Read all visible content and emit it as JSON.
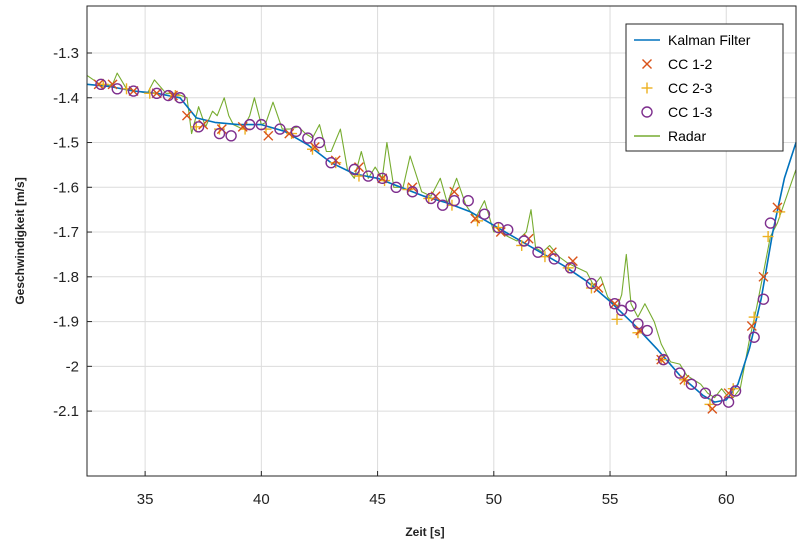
{
  "chart_data": {
    "type": "line",
    "title": "",
    "xlabel": "Zeit [s]",
    "ylabel": "Geschwindigkeit [m/s]",
    "xlim": [
      32.5,
      63
    ],
    "ylim": [
      -2.245,
      -1.195
    ],
    "grid": true,
    "legend_position": "top-right",
    "x_ticks": [
      35,
      40,
      45,
      50,
      55,
      60
    ],
    "y_ticks": [
      -1.3,
      -1.4,
      -1.5,
      -1.6,
      -1.7,
      -1.8,
      -1.9,
      -2,
      -2.1
    ],
    "x_tick_labels": [
      "35",
      "40",
      "45",
      "50",
      "55",
      "60"
    ],
    "y_tick_labels": [
      "-1.3",
      "-1.4",
      "-1.5",
      "-1.6",
      "-1.7",
      "-1.8",
      "-1.9",
      "-2",
      "-2.1"
    ],
    "series": [
      {
        "name": "Kalman Filter",
        "kind": "line",
        "color": "#0072BD",
        "x": [
          32.5,
          33.5,
          34.5,
          35.5,
          36.5,
          37.2,
          38,
          39,
          40,
          41,
          42,
          43,
          44,
          45,
          46,
          47,
          48,
          49,
          50,
          51,
          52,
          53,
          54,
          55,
          56,
          57,
          58,
          59,
          59.5,
          60,
          60.5,
          61,
          61.5,
          62,
          62.5,
          63
        ],
        "y": [
          -1.37,
          -1.375,
          -1.385,
          -1.39,
          -1.4,
          -1.445,
          -1.455,
          -1.46,
          -1.46,
          -1.475,
          -1.505,
          -1.545,
          -1.57,
          -1.58,
          -1.6,
          -1.62,
          -1.635,
          -1.655,
          -1.685,
          -1.715,
          -1.745,
          -1.775,
          -1.81,
          -1.855,
          -1.905,
          -1.96,
          -2.02,
          -2.065,
          -2.08,
          -2.075,
          -2.04,
          -1.96,
          -1.85,
          -1.7,
          -1.58,
          -1.5
        ]
      },
      {
        "name": "CC 1-2",
        "kind": "marker",
        "marker": "x",
        "color": "#D95319",
        "x": [
          33,
          33.6,
          34.5,
          35.5,
          36.2,
          36.8,
          37.5,
          38.3,
          39.2,
          40.3,
          41.2,
          42.3,
          43.2,
          44.2,
          45.2,
          46.5,
          47.5,
          48.3,
          49.2,
          50.3,
          51.5,
          52.5,
          53.4,
          54.5,
          55.2,
          56.3,
          57.2,
          58.2,
          59.4,
          60.1,
          61.1,
          61.6,
          62.2
        ],
        "y": [
          -1.37,
          -1.37,
          -1.385,
          -1.39,
          -1.395,
          -1.44,
          -1.46,
          -1.47,
          -1.465,
          -1.485,
          -1.48,
          -1.51,
          -1.54,
          -1.555,
          -1.58,
          -1.6,
          -1.62,
          -1.61,
          -1.67,
          -1.7,
          -1.715,
          -1.745,
          -1.765,
          -1.825,
          -1.86,
          -1.92,
          -1.985,
          -2.03,
          -2.095,
          -2.06,
          -1.91,
          -1.8,
          -1.645
        ]
      },
      {
        "name": "CC 2-3",
        "kind": "marker",
        "marker": "+",
        "color": "#EDB120",
        "x": [
          33.2,
          34.2,
          35.2,
          36.3,
          37.2,
          38.2,
          39.3,
          40.2,
          41.3,
          42.2,
          43.2,
          44.2,
          45.3,
          46.3,
          47.2,
          48.2,
          49.3,
          50.2,
          51.2,
          52.2,
          53.2,
          54.2,
          55.3,
          56.2,
          57.2,
          58.2,
          59.3,
          60.3,
          61.2,
          61.8,
          62.3
        ],
        "y": [
          -1.37,
          -1.38,
          -1.39,
          -1.395,
          -1.465,
          -1.47,
          -1.47,
          -1.47,
          -1.48,
          -1.515,
          -1.545,
          -1.575,
          -1.585,
          -1.605,
          -1.625,
          -1.64,
          -1.675,
          -1.69,
          -1.73,
          -1.755,
          -1.78,
          -1.825,
          -1.895,
          -1.925,
          -1.985,
          -2.03,
          -2.085,
          -2.05,
          -1.89,
          -1.71,
          -1.655
        ]
      },
      {
        "name": "CC 1-3",
        "kind": "marker",
        "marker": "o",
        "color": "#7E2F8E",
        "x": [
          33.1,
          33.8,
          34.5,
          35.5,
          36,
          36.5,
          37.3,
          38.2,
          38.7,
          39.5,
          40,
          40.8,
          41.5,
          42,
          42.5,
          43,
          44,
          44.6,
          45.2,
          45.8,
          46.5,
          47.3,
          47.8,
          48.3,
          48.9,
          49.6,
          50.2,
          50.6,
          51.3,
          51.9,
          52.6,
          53.3,
          54.2,
          55.2,
          55.5,
          55.9,
          56.2,
          56.6,
          57.3,
          58,
          58.5,
          59.1,
          59.6,
          60.1,
          60.4,
          61.2,
          61.6,
          61.9
        ],
        "y": [
          -1.37,
          -1.38,
          -1.385,
          -1.39,
          -1.395,
          -1.4,
          -1.465,
          -1.48,
          -1.485,
          -1.46,
          -1.46,
          -1.47,
          -1.475,
          -1.49,
          -1.5,
          -1.545,
          -1.56,
          -1.575,
          -1.58,
          -1.6,
          -1.61,
          -1.625,
          -1.64,
          -1.63,
          -1.63,
          -1.66,
          -1.69,
          -1.695,
          -1.72,
          -1.745,
          -1.76,
          -1.78,
          -1.815,
          -1.86,
          -1.875,
          -1.865,
          -1.905,
          -1.92,
          -1.985,
          -2.015,
          -2.04,
          -2.06,
          -2.075,
          -2.08,
          -2.055,
          -1.935,
          -1.85,
          -1.68
        ]
      },
      {
        "name": "Radar",
        "kind": "line",
        "color": "#77AC30",
        "x": [
          32.5,
          33.2,
          33.6,
          33.8,
          34.2,
          34.6,
          35.1,
          35.4,
          35.9,
          36.3,
          36.8,
          37.0,
          37.3,
          37.6,
          37.9,
          38.1,
          38.4,
          38.6,
          38.8,
          39.2,
          39.5,
          39.7,
          40,
          40.2,
          40.5,
          40.9,
          41.2,
          41.6,
          41.9,
          42.2,
          42.5,
          42.8,
          43,
          43.4,
          43.7,
          44,
          44.3,
          44.6,
          44.9,
          45.2,
          45.4,
          45.7,
          46.1,
          46.4,
          46.9,
          47.3,
          47.7,
          48,
          48.4,
          48.8,
          49.2,
          49.6,
          50,
          50.3,
          50.6,
          51,
          51.4,
          51.6,
          51.8,
          52.1,
          52.4,
          52.8,
          53.2,
          53.6,
          54,
          54.3,
          54.6,
          54.9,
          55.3,
          55.5,
          55.7,
          55.9,
          56.2,
          56.5,
          56.9,
          57.2,
          57.6,
          58,
          58.3,
          58.6,
          58.9,
          59.2,
          59.5,
          59.8,
          60.1,
          60.3,
          60.6,
          61,
          61.3,
          61.6,
          61.9,
          62.2,
          62.6,
          63
        ],
        "y": [
          -1.35,
          -1.375,
          -1.37,
          -1.345,
          -1.38,
          -1.385,
          -1.39,
          -1.36,
          -1.39,
          -1.39,
          -1.4,
          -1.48,
          -1.42,
          -1.465,
          -1.43,
          -1.44,
          -1.4,
          -1.44,
          -1.46,
          -1.47,
          -1.44,
          -1.4,
          -1.46,
          -1.455,
          -1.41,
          -1.47,
          -1.47,
          -1.465,
          -1.48,
          -1.49,
          -1.46,
          -1.52,
          -1.52,
          -1.47,
          -1.56,
          -1.58,
          -1.52,
          -1.58,
          -1.555,
          -1.58,
          -1.5,
          -1.6,
          -1.6,
          -1.53,
          -1.61,
          -1.62,
          -1.58,
          -1.635,
          -1.58,
          -1.64,
          -1.67,
          -1.63,
          -1.7,
          -1.7,
          -1.71,
          -1.72,
          -1.7,
          -1.65,
          -1.735,
          -1.745,
          -1.73,
          -1.755,
          -1.77,
          -1.78,
          -1.79,
          -1.82,
          -1.8,
          -1.845,
          -1.87,
          -1.84,
          -1.75,
          -1.86,
          -1.89,
          -1.86,
          -1.9,
          -1.95,
          -1.99,
          -1.995,
          -2.02,
          -2.03,
          -2.04,
          -2.06,
          -2.07,
          -2.05,
          -2.07,
          -2.07,
          -2.05,
          -1.94,
          -1.87,
          -1.79,
          -1.71,
          -1.68,
          -1.62,
          -1.56
        ]
      }
    ]
  }
}
